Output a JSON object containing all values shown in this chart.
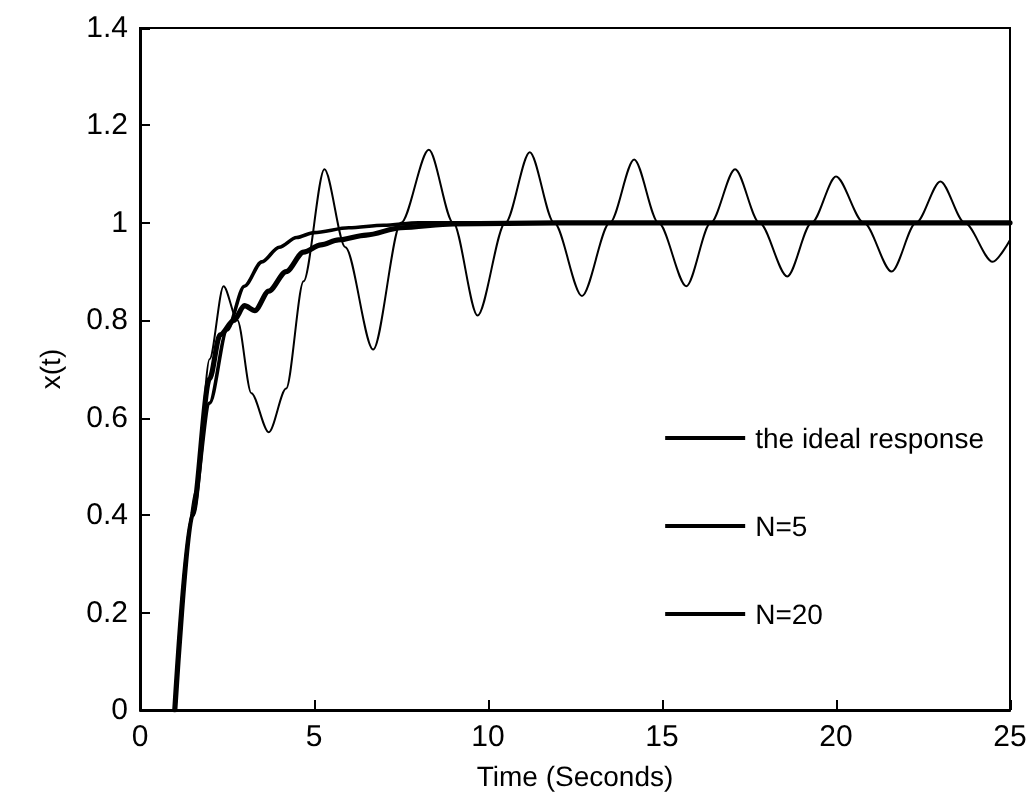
{
  "chart_data": {
    "type": "line",
    "xlabel": "Time (Seconds)",
    "ylabel": "x(t)",
    "xlim": [
      0,
      25
    ],
    "xticks": [
      0,
      5,
      10,
      15,
      20,
      25
    ],
    "ylim": [
      0,
      1.4
    ],
    "yticks": [
      0,
      0.2,
      0.4,
      0.6,
      0.8,
      1,
      1.2,
      1.4
    ],
    "grid": false,
    "legend": "right",
    "marker": "none",
    "line_style": "solid",
    "series": [
      {
        "name": "the ideal response",
        "color": "#000000",
        "x": [
          1,
          1.5,
          2,
          2.5,
          3,
          3.5,
          4,
          4.5,
          5,
          6,
          7,
          8,
          10,
          15,
          20,
          25
        ],
        "values": [
          0,
          0.4,
          0.63,
          0.78,
          0.87,
          0.92,
          0.95,
          0.97,
          0.98,
          0.99,
          0.995,
          1,
          1,
          1,
          1,
          1
        ]
      },
      {
        "name": "N=5",
        "color": "#000000",
        "x": [
          1,
          1.6,
          2,
          2.4,
          2.8,
          3.2,
          3.7,
          4.2,
          4.7,
          5.3,
          5.9,
          6.7,
          7.5,
          8.3,
          9,
          9.7,
          10.5,
          11.2,
          11.9,
          12.7,
          13.5,
          14.2,
          14.9,
          15.7,
          16.4,
          17.1,
          17.8,
          18.6,
          19.3,
          20,
          20.8,
          21.6,
          22.3,
          23,
          23.7,
          24.5,
          25
        ],
        "values": [
          0,
          0.45,
          0.72,
          0.87,
          0.8,
          0.65,
          0.57,
          0.66,
          0.88,
          1.11,
          0.95,
          0.74,
          1,
          1.15,
          1,
          0.81,
          1,
          1.145,
          1,
          0.85,
          1,
          1.13,
          1,
          0.87,
          1,
          1.11,
          1,
          0.89,
          1,
          1.095,
          1,
          0.9,
          1,
          1.085,
          1,
          0.92,
          0.965
        ]
      },
      {
        "name": "N=20",
        "color": "#000000",
        "x": [
          1,
          1.5,
          2,
          2.3,
          2.7,
          3,
          3.3,
          3.7,
          4.2,
          4.7,
          5.2,
          5.7,
          6.5,
          7.5,
          9,
          12,
          25
        ],
        "values": [
          0,
          0.4,
          0.68,
          0.77,
          0.8,
          0.83,
          0.82,
          0.86,
          0.9,
          0.94,
          0.955,
          0.965,
          0.975,
          0.99,
          0.998,
          1,
          1
        ]
      }
    ]
  }
}
